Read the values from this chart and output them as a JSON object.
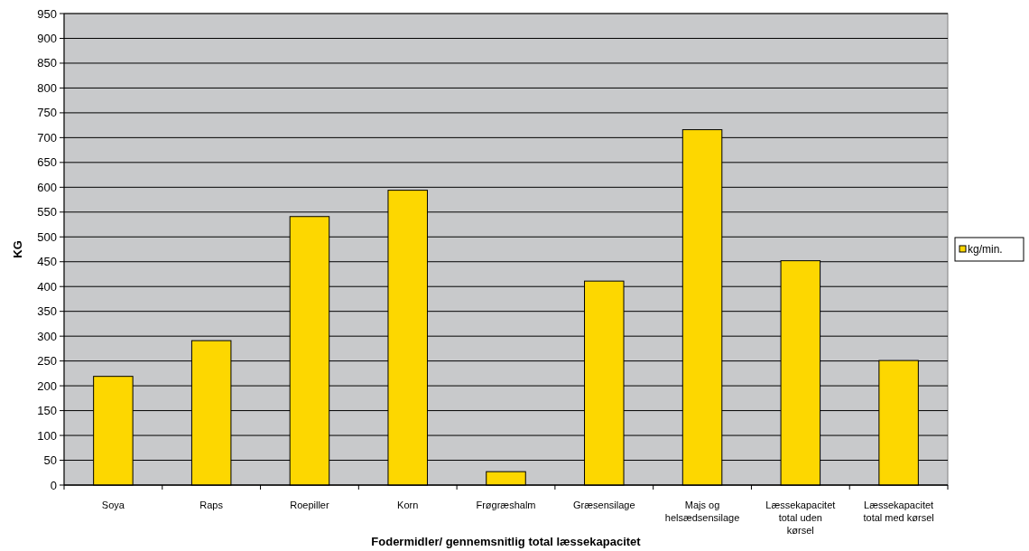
{
  "chart_data": {
    "type": "bar",
    "xlabel": "Fodermidler/ gennemsnitlig total læssekapacitet",
    "ylabel": "KG",
    "categories": [
      "Soya",
      "Raps",
      "Roepiller",
      "Korn",
      "Frøgræshalm",
      "Græsensilage",
      "Majs og helsædsensilage",
      "Læssekapacitet total uden kørsel",
      "Læssekapacitet total med kørsel"
    ],
    "series": [
      {
        "name": "kg/min.",
        "color": "#fdd700",
        "values": [
          219,
          291,
          541,
          594,
          27,
          411,
          716,
          452,
          251
        ]
      }
    ],
    "ylim": [
      0,
      950
    ],
    "yticks": [
      0,
      50,
      100,
      150,
      200,
      250,
      300,
      350,
      400,
      450,
      500,
      550,
      600,
      650,
      700,
      750,
      800,
      850,
      900,
      950
    ],
    "grid": "y",
    "legend": "right"
  }
}
